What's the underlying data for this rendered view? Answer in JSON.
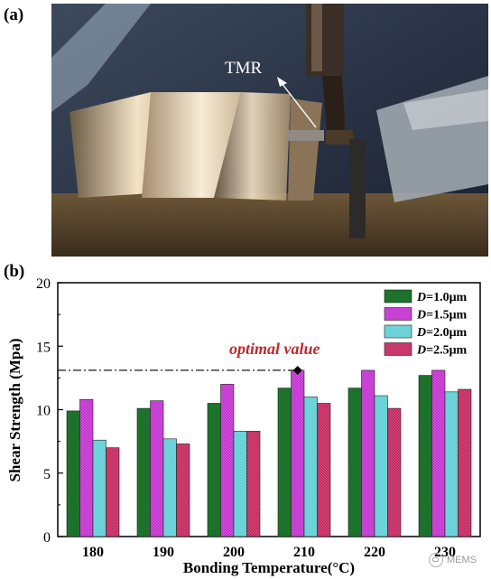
{
  "panel_a": {
    "label": "(a)",
    "annotation": "TMR"
  },
  "panel_b": {
    "label": "(b)"
  },
  "watermark": "MEMS",
  "chart_data": {
    "type": "bar",
    "categories": [
      "180",
      "190",
      "200",
      "210",
      "220",
      "230"
    ],
    "series": [
      {
        "name": "D=1.0μm",
        "label_var": "D",
        "label_rest": "=1.0μm",
        "color": "#1e7a2e",
        "values": [
          9.9,
          10.1,
          10.5,
          11.7,
          11.7,
          12.7
        ]
      },
      {
        "name": "D=1.5μm",
        "label_var": "D",
        "label_rest": "=1.5μm",
        "color": "#c22fce",
        "values": [
          10.8,
          10.7,
          12.0,
          13.1,
          13.1,
          13.1
        ]
      },
      {
        "name": "D=2.0μm",
        "label_var": "D",
        "label_rest": "=2.0μm",
        "color": "#4ec9cf",
        "values": [
          7.6,
          7.7,
          8.3,
          11.0,
          11.1,
          11.4
        ]
      },
      {
        "name": "D=2.5μm",
        "label_var": "D",
        "label_rest": "=2.5μm",
        "color": "#c2265e",
        "values": [
          7.0,
          7.3,
          8.3,
          10.5,
          10.1,
          11.6
        ]
      }
    ],
    "xlabel": "Bonding Temperature(°C)",
    "ylabel": "Shear Strength (Mpa)",
    "ylim": [
      0,
      20
    ],
    "yticks": [
      "0",
      "5",
      "10",
      "15",
      "20"
    ],
    "legend_position": "top-right",
    "annotation": {
      "text": "optimal value",
      "value": 13.1,
      "color": "#c0282d"
    }
  }
}
